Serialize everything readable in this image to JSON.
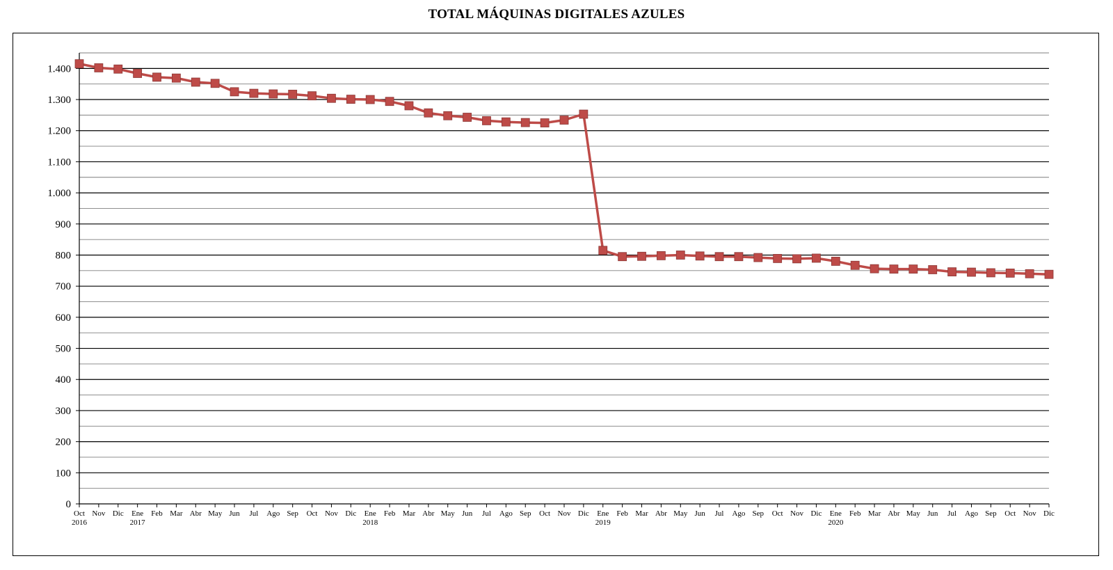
{
  "chart_data": {
    "type": "line",
    "title": "TOTAL MÁQUINAS DIGITALES AZULES",
    "xlabel": "",
    "ylabel": "",
    "ylim": [
      0,
      1450
    ],
    "ytick_values": [
      0,
      100,
      200,
      300,
      400,
      500,
      600,
      700,
      800,
      900,
      1000,
      1100,
      1200,
      1300,
      1400
    ],
    "ytick_labels": [
      "0",
      "100",
      "200",
      "300",
      "400",
      "500",
      "600",
      "700",
      "800",
      "900",
      "1.000",
      "1.100",
      "1.200",
      "1.300",
      "1.400"
    ],
    "grid": true,
    "legend": "none",
    "series_color": "#be4b48",
    "categories": [
      "Oct",
      "Nov",
      "Dic",
      "Ene",
      "Feb",
      "Mar",
      "Abr",
      "May",
      "Jun",
      "Jul",
      "Ago",
      "Sep",
      "Oct",
      "Nov",
      "Dic",
      "Ene",
      "Feb",
      "Mar",
      "Abr",
      "May",
      "Jun",
      "Jul",
      "Ago",
      "Sep",
      "Oct",
      "Nov",
      "Dic",
      "Ene",
      "Feb",
      "Mar",
      "Abr",
      "May",
      "Jun",
      "Jul",
      "Ago",
      "Sep",
      "Oct",
      "Nov",
      "Dic",
      "Ene",
      "Feb",
      "Mar",
      "Abr",
      "May",
      "Jun",
      "Jul",
      "Ago",
      "Sep",
      "Oct",
      "Nov",
      "Dic"
    ],
    "year_labels": [
      {
        "index": 0,
        "label": "2016"
      },
      {
        "index": 3,
        "label": "2017"
      },
      {
        "index": 15,
        "label": "2018"
      },
      {
        "index": 27,
        "label": "2019"
      },
      {
        "index": 39,
        "label": "2020"
      }
    ],
    "series": [
      {
        "values": [
          1415,
          1402,
          1398,
          1384,
          1372,
          1369,
          1356,
          1352,
          1325,
          1320,
          1318,
          1317,
          1312,
          1304,
          1301,
          1300,
          1294,
          1280,
          1257,
          1248,
          1243,
          1232,
          1228,
          1226,
          1225,
          1234,
          1253,
          815,
          795,
          796,
          798,
          800,
          797,
          795,
          795,
          792,
          789,
          788,
          790,
          780,
          767,
          756,
          755,
          755,
          753,
          746,
          745,
          743,
          742,
          740,
          738
        ]
      }
    ]
  }
}
